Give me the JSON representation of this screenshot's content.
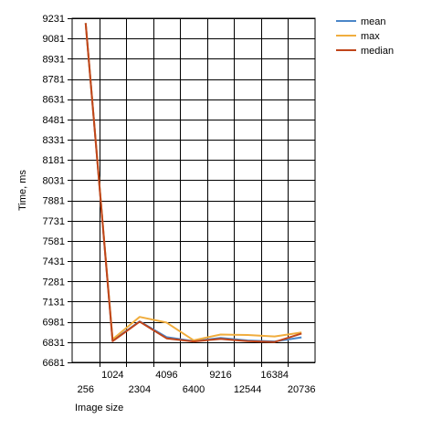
{
  "chart_data": {
    "type": "line",
    "xlabel": "Image size",
    "ylabel": "Time, ms",
    "categories": [
      "256",
      "1024",
      "2304",
      "4096",
      "6400",
      "9216",
      "12544",
      "16384",
      "20736"
    ],
    "yticks": [
      6681,
      6831,
      6981,
      7131,
      7281,
      7431,
      7581,
      7731,
      7881,
      8031,
      8181,
      8331,
      8481,
      8631,
      8781,
      8931,
      9081,
      9231
    ],
    "ylim": [
      6681,
      9231
    ],
    "grid": true,
    "legend_position": "top-right",
    "series": [
      {
        "name": "mean",
        "color": "#4a86c8",
        "values": [
          9195,
          6842,
          6985,
          6868,
          6838,
          6862,
          6843,
          6836,
          6866
        ]
      },
      {
        "name": "max",
        "color": "#f0ad3e",
        "values": [
          9195,
          6852,
          7018,
          6976,
          6845,
          6887,
          6884,
          6873,
          6902
        ]
      },
      {
        "name": "median",
        "color": "#c0451a",
        "values": [
          9195,
          6838,
          6983,
          6859,
          6836,
          6855,
          6838,
          6832,
          6895
        ]
      }
    ]
  }
}
